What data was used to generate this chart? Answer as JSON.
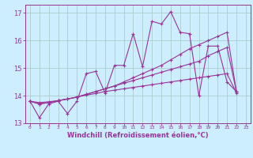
{
  "background_color": "#cceeff",
  "grid_color": "#aacccc",
  "line_color": "#993399",
  "marker": "+",
  "xlabel": "Windchill (Refroidissement éolien,°C)",
  "ylim": [
    13,
    17.3
  ],
  "xlim": [
    -0.5,
    23.5
  ],
  "yticks": [
    13,
    14,
    15,
    16,
    17
  ],
  "xticks": [
    0,
    1,
    2,
    3,
    4,
    5,
    6,
    7,
    8,
    9,
    10,
    11,
    12,
    13,
    14,
    15,
    16,
    17,
    18,
    19,
    20,
    21,
    22,
    23
  ],
  "series": [
    [
      13.8,
      13.2,
      13.7,
      13.8,
      13.35,
      13.8,
      14.8,
      14.88,
      14.1,
      15.1,
      15.1,
      16.25,
      15.05,
      16.7,
      16.6,
      17.05,
      16.3,
      16.25,
      14.0,
      15.8,
      15.8,
      14.5,
      14.15,
      null
    ],
    [
      13.8,
      13.7,
      13.75,
      13.82,
      13.88,
      13.95,
      14.05,
      14.15,
      14.25,
      14.35,
      14.5,
      14.65,
      14.8,
      14.95,
      15.1,
      15.3,
      15.5,
      15.7,
      15.85,
      16.0,
      16.15,
      16.3,
      14.15,
      null
    ],
    [
      13.8,
      13.7,
      13.75,
      13.82,
      13.88,
      13.95,
      14.05,
      14.15,
      14.25,
      14.35,
      14.45,
      14.55,
      14.65,
      14.75,
      14.85,
      14.95,
      15.05,
      15.15,
      15.25,
      15.45,
      15.6,
      15.75,
      14.15,
      null
    ],
    [
      13.8,
      13.75,
      13.78,
      13.82,
      13.88,
      13.95,
      14.02,
      14.08,
      14.15,
      14.2,
      14.25,
      14.3,
      14.35,
      14.4,
      14.45,
      14.5,
      14.55,
      14.6,
      14.65,
      14.7,
      14.75,
      14.8,
      14.1,
      null
    ]
  ]
}
